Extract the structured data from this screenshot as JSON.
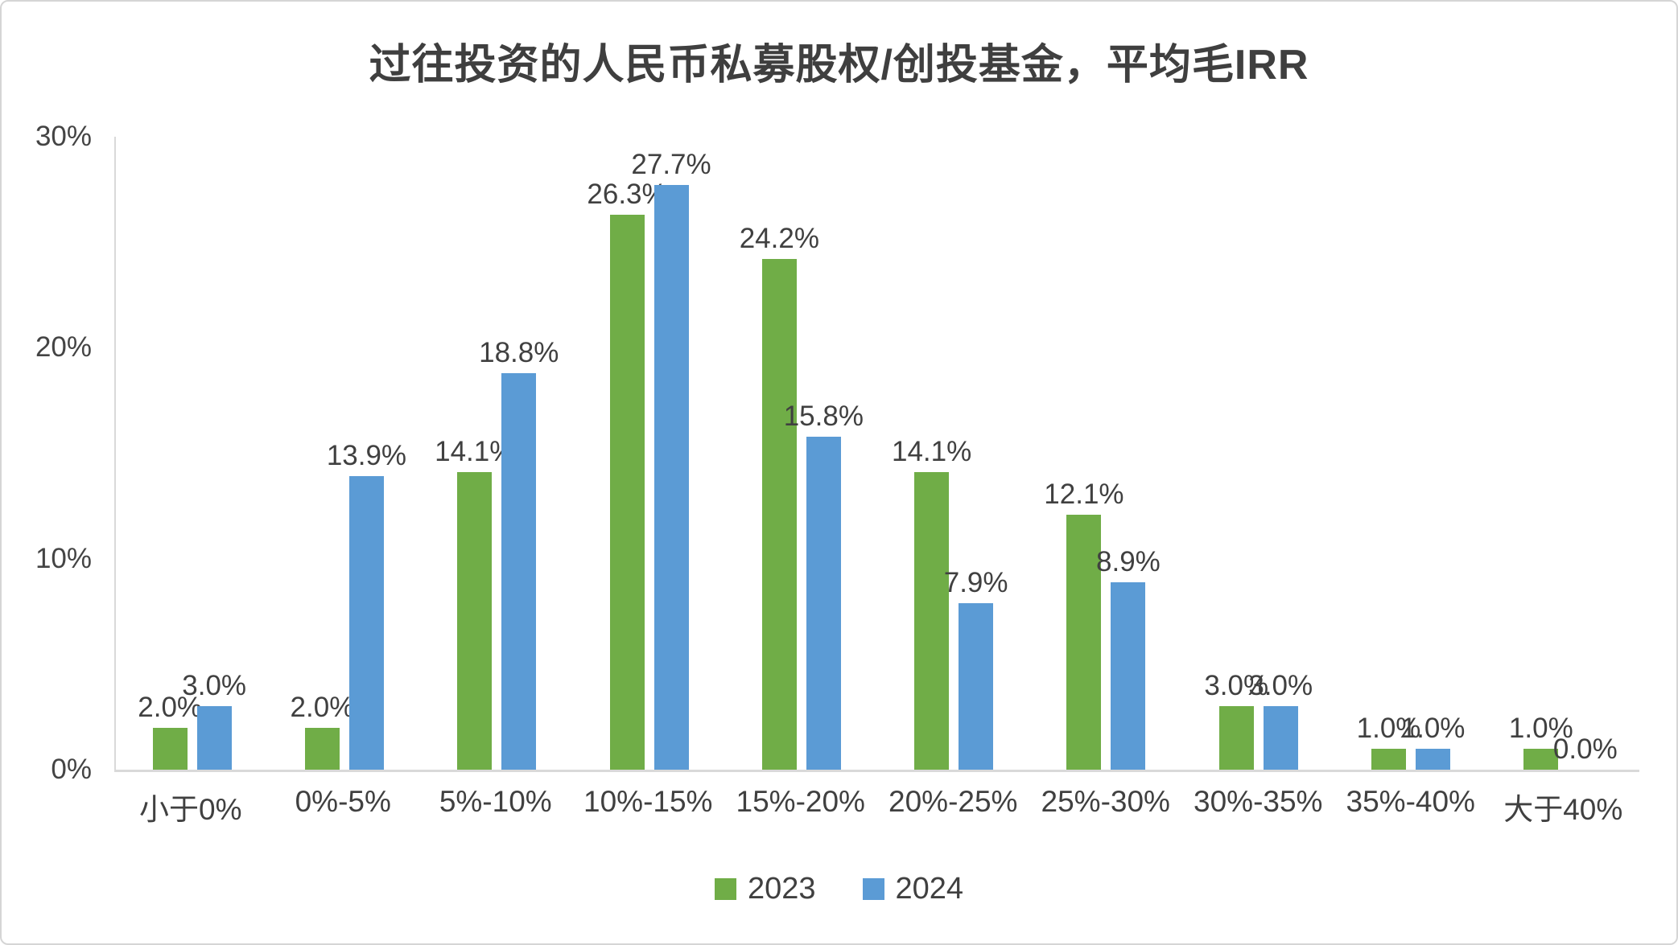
{
  "chart_data": {
    "type": "bar",
    "title": "过往投资的人民币私募股权/创投基金，平均毛IRR",
    "categories": [
      "小于0%",
      "0%-5%",
      "5%-10%",
      "10%-15%",
      "15%-20%",
      "20%-25%",
      "25%-30%",
      "30%-35%",
      "35%-40%",
      "大于40%"
    ],
    "series": [
      {
        "name": "2023",
        "color": "#70AD47",
        "values": [
          2.0,
          2.0,
          14.1,
          26.3,
          24.2,
          14.1,
          12.1,
          3.0,
          1.0,
          1.0
        ],
        "labels": [
          "2.0%",
          "2.0%",
          "14.1%",
          "26.3%",
          "24.2%",
          "14.1%",
          "12.1%",
          "3.0%",
          "1.0%",
          "1.0%"
        ]
      },
      {
        "name": "2024",
        "color": "#5B9BD5",
        "values": [
          3.0,
          13.9,
          18.8,
          27.7,
          15.8,
          7.9,
          8.9,
          3.0,
          1.0,
          0.0
        ],
        "labels": [
          "3.0%",
          "13.9%",
          "18.8%",
          "27.7%",
          "15.8%",
          "7.9%",
          "8.9%",
          "3.0%",
          "1.0%",
          "0.0%"
        ]
      }
    ],
    "xlabel": "",
    "ylabel": "",
    "ylim": [
      0,
      30
    ],
    "yticks": [
      {
        "value": 30,
        "label": "30%"
      },
      {
        "value": 20,
        "label": "20%"
      },
      {
        "value": 10,
        "label": "10%"
      },
      {
        "value": 0,
        "label": "0%"
      }
    ],
    "grid": false,
    "data_labels": true,
    "legend_position": "bottom",
    "axis_line_color": "#d9d9d9",
    "text_color": "#404040"
  }
}
